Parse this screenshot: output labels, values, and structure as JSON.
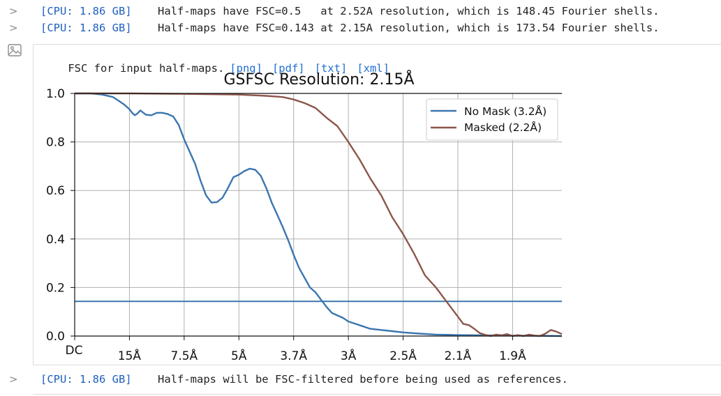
{
  "log_lines_top": [
    {
      "cpu": "[CPU: 1.86 GB]",
      "message": "Half-maps have FSC=0.5   at 2.52A resolution, which is 148.45 Fourier shells."
    },
    {
      "cpu": "[CPU: 1.86 GB]",
      "message": "Half-maps have FSC=0.143 at 2.15A resolution, which is 173.54 Fourier shells."
    }
  ],
  "figure": {
    "caption": "FSC for input half-maps.",
    "links": [
      "[png]",
      "[pdf]",
      "[txt]",
      "[xml]"
    ]
  },
  "log_lines_bottom": [
    {
      "cpu": "[CPU: 1.86 GB]",
      "message": "Half-maps will be FSC-filtered before being used as references."
    }
  ],
  "chart_data": {
    "type": "line",
    "title": "GSFSC Resolution: 2.15Å",
    "x_tick_labels": [
      "DC",
      "15Å",
      "7.5Å",
      "5Å",
      "3.7Å",
      "3Å",
      "2.5Å",
      "2.1Å",
      "1.9Å"
    ],
    "x_domain": [
      0,
      8.9
    ],
    "ylim": [
      0.0,
      1.0
    ],
    "y_ticks": [
      "0.0",
      "0.2",
      "0.4",
      "0.6",
      "0.8",
      "1.0"
    ],
    "grid": true,
    "legend_position": "top-right",
    "threshold": {
      "y": 0.143,
      "color": "#3b76af"
    },
    "series": [
      {
        "name": "No Mask (3.2Å)",
        "color": "#3b76af",
        "x": [
          0,
          0.3,
          0.5,
          0.7,
          0.8,
          0.9,
          1.0,
          1.05,
          1.1,
          1.15,
          1.2,
          1.3,
          1.4,
          1.5,
          1.6,
          1.7,
          1.8,
          1.9,
          2.0,
          2.1,
          2.2,
          2.3,
          2.4,
          2.5,
          2.6,
          2.7,
          2.8,
          2.9,
          3.0,
          3.1,
          3.2,
          3.3,
          3.4,
          3.5,
          3.6,
          3.7,
          3.8,
          3.9,
          4.0,
          4.1,
          4.2,
          4.3,
          4.4,
          4.5,
          4.6,
          4.7,
          4.8,
          4.9,
          5.0,
          5.2,
          5.4,
          5.6,
          5.8,
          6.0,
          6.3,
          6.6,
          7.0,
          7.5,
          8.0,
          8.9
        ],
        "y": [
          1.0,
          1.0,
          0.995,
          0.985,
          0.97,
          0.955,
          0.935,
          0.92,
          0.91,
          0.918,
          0.93,
          0.912,
          0.91,
          0.92,
          0.92,
          0.915,
          0.905,
          0.87,
          0.81,
          0.76,
          0.71,
          0.64,
          0.58,
          0.55,
          0.552,
          0.57,
          0.61,
          0.655,
          0.665,
          0.68,
          0.69,
          0.685,
          0.66,
          0.61,
          0.55,
          0.5,
          0.45,
          0.395,
          0.335,
          0.28,
          0.24,
          0.2,
          0.18,
          0.15,
          0.12,
          0.095,
          0.085,
          0.075,
          0.06,
          0.045,
          0.03,
          0.025,
          0.02,
          0.015,
          0.01,
          0.006,
          0.004,
          0.003,
          0.002,
          0.0
        ]
      },
      {
        "name": "Masked (2.2Å)",
        "color": "#8c564b",
        "x": [
          0,
          1.0,
          2.0,
          3.0,
          3.5,
          3.8,
          4.0,
          4.2,
          4.4,
          4.6,
          4.8,
          5.0,
          5.2,
          5.4,
          5.6,
          5.8,
          6.0,
          6.2,
          6.4,
          6.6,
          6.8,
          7.0,
          7.1,
          7.2,
          7.3,
          7.4,
          7.5,
          7.6,
          7.7,
          7.8,
          7.9,
          8.0,
          8.1,
          8.2,
          8.3,
          8.4,
          8.5,
          8.6,
          8.7,
          8.8,
          8.9
        ],
        "y": [
          1.0,
          1.0,
          0.998,
          0.995,
          0.99,
          0.985,
          0.975,
          0.96,
          0.94,
          0.9,
          0.865,
          0.8,
          0.73,
          0.65,
          0.58,
          0.49,
          0.42,
          0.34,
          0.25,
          0.2,
          0.14,
          0.08,
          0.05,
          0.045,
          0.03,
          0.012,
          0.005,
          0.0,
          0.006,
          0.003,
          0.008,
          0.0,
          0.004,
          0.0,
          0.006,
          0.002,
          0.0,
          0.01,
          0.025,
          0.018,
          0.008
        ]
      }
    ]
  }
}
